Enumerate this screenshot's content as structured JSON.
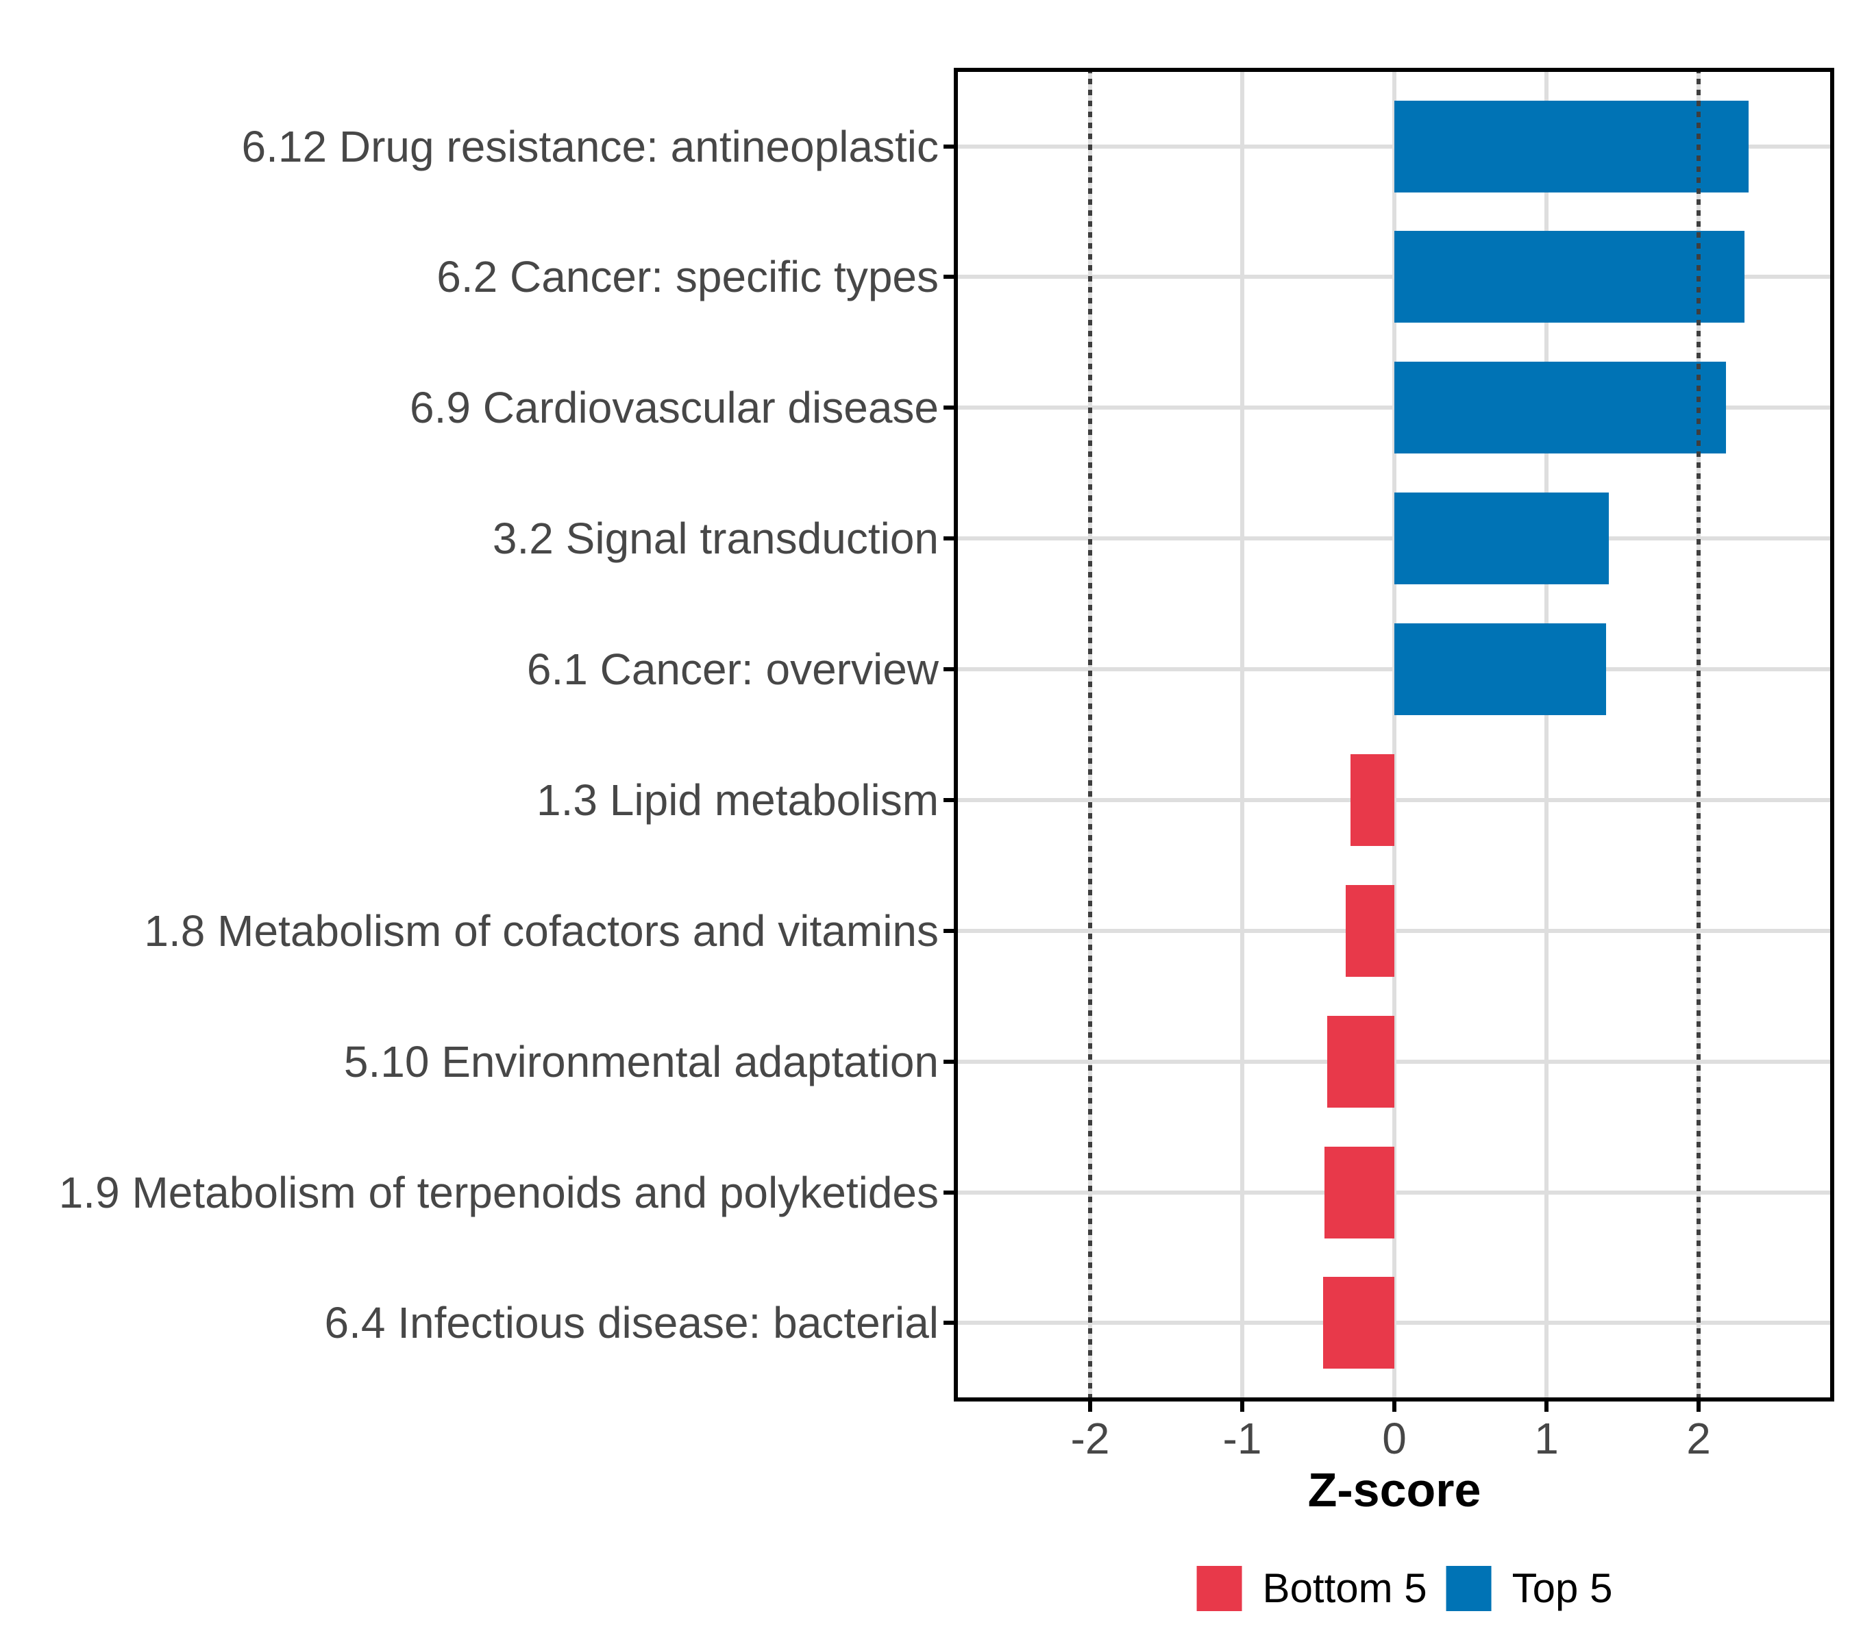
{
  "figure": {
    "background": "#ffffff",
    "text_color_axis": "#474747"
  },
  "chart_data": {
    "type": "bar",
    "orientation": "horizontal",
    "title": "",
    "xlabel": "Z-score",
    "ylabel": "",
    "categories": [
      "6.12 Drug resistance: antineoplastic",
      "6.2 Cancer: specific types",
      "6.9 Cardiovascular disease",
      "3.2 Signal transduction",
      "6.1 Cancer: overview",
      "1.3 Lipid metabolism",
      "1.8 Metabolism of cofactors and vitamins",
      "5.10 Environmental adaptation",
      "1.9 Metabolism of terpenoids and polyketides",
      "6.4 Infectious disease: bacterial"
    ],
    "values": [
      2.33,
      2.3,
      2.18,
      1.41,
      1.39,
      -0.29,
      -0.32,
      -0.44,
      -0.46,
      -0.47
    ],
    "groups": [
      "Top 5",
      "Top 5",
      "Top 5",
      "Top 5",
      "Top 5",
      "Bottom 5",
      "Bottom 5",
      "Bottom 5",
      "Bottom 5",
      "Bottom 5"
    ],
    "group_colors": {
      "Top 5": "#0073B5",
      "Bottom 5": "#E8394A"
    },
    "x_ticks": [
      -2,
      -1,
      0,
      1,
      2
    ],
    "xlim": [
      -2.9,
      2.9
    ],
    "reference_lines": [
      -2,
      2
    ],
    "reference_line_style": "dotted",
    "grid": true,
    "gridline_color": "#dedede",
    "legend": {
      "position": "bottom",
      "entries": [
        {
          "label": "Bottom 5",
          "color": "#E8394A"
        },
        {
          "label": "Top 5",
          "color": "#0073B5"
        }
      ]
    }
  }
}
